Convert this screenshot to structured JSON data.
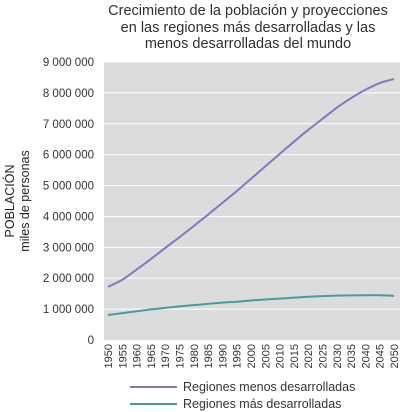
{
  "chart_data": {
    "type": "line",
    "title_lines": [
      "Crecimiento de la población y proyecciones",
      "en las regiones más desarrolladas y las",
      "menos desarrolladas del mundo"
    ],
    "ylabel_lines": [
      "POBLACIÓN",
      "miles de personas"
    ],
    "xlabel": "",
    "x": [
      1950,
      1955,
      1960,
      1965,
      1970,
      1975,
      1980,
      1985,
      1990,
      1995,
      2000,
      2005,
      2010,
      2015,
      2020,
      2025,
      2030,
      2035,
      2040,
      2045,
      2050
    ],
    "y_tick_labels": [
      "0",
      "1 000 000",
      "2 000 000",
      "3 000 000",
      "4 000 000",
      "5 000 000",
      "6 000 000",
      "7 000 000",
      "8 000 000",
      "9 000 000"
    ],
    "y_ticks": [
      0,
      1000000,
      2000000,
      3000000,
      4000000,
      5000000,
      6000000,
      7000000,
      8000000,
      9000000
    ],
    "ylim": [
      0,
      9000000
    ],
    "grid": true,
    "legend_position": "bottom",
    "series": [
      {
        "name": "Regiones menos desarrolladas",
        "color": "#8278bd",
        "values": [
          1720000,
          1950000,
          2280000,
          2620000,
          2980000,
          3330000,
          3690000,
          4060000,
          4440000,
          4820000,
          5220000,
          5620000,
          6020000,
          6420000,
          6800000,
          7160000,
          7520000,
          7830000,
          8100000,
          8320000,
          8450000
        ]
      },
      {
        "name": "Regiones más desarrolladas",
        "color": "#4a9c9c",
        "values": [
          810000,
          870000,
          930000,
          990000,
          1040000,
          1090000,
          1130000,
          1170000,
          1210000,
          1240000,
          1280000,
          1310000,
          1340000,
          1370000,
          1400000,
          1420000,
          1435000,
          1445000,
          1450000,
          1450000,
          1430000
        ]
      }
    ]
  }
}
